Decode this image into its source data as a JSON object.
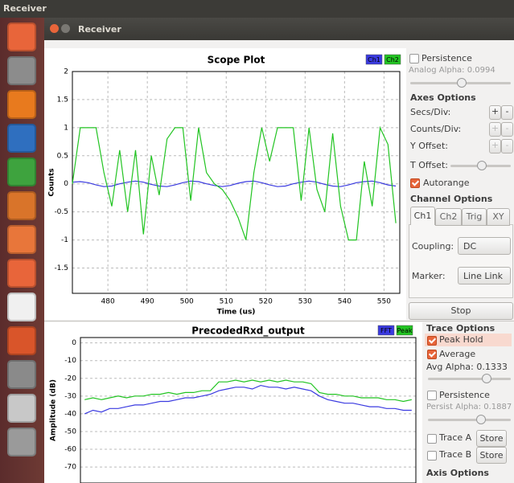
{
  "topbar": {
    "title": "Receiver"
  },
  "window": {
    "title": "Receiver"
  },
  "chart_data": [
    {
      "type": "line",
      "title": "Scope Plot",
      "xlabel": "Time (us)",
      "ylabel": "Counts",
      "x": [
        471,
        473,
        475,
        477,
        479,
        481,
        483,
        485,
        487,
        489,
        491,
        493,
        495,
        497,
        499,
        501,
        503,
        505,
        507,
        509,
        511,
        513,
        515,
        517,
        519,
        521,
        523,
        525,
        527,
        529,
        531,
        533,
        535,
        537,
        539,
        541,
        543,
        545,
        547,
        549,
        551,
        553
      ],
      "series": [
        {
          "name": "Ch1",
          "color": "#3a3ae0",
          "values": [
            0.03,
            0.04,
            0.02,
            -0.02,
            -0.05,
            -0.04,
            0,
            0.03,
            0.05,
            0.03,
            -0.01,
            -0.04,
            -0.05,
            -0.02,
            0.02,
            0.05,
            0.04,
            0,
            -0.03,
            -0.05,
            -0.03,
            0.01,
            0.04,
            0.05,
            0.02,
            -0.02,
            -0.05,
            -0.04,
            0,
            0.03,
            0.05,
            0.03,
            -0.01,
            -0.04,
            -0.05,
            -0.02,
            0.02,
            0.04,
            0.05,
            0.02,
            -0.02,
            -0.04
          ]
        },
        {
          "name": "Ch2",
          "color": "#22c422",
          "values": [
            0,
            1,
            1,
            1,
            0.2,
            -0.4,
            0.6,
            -0.5,
            0.6,
            -0.9,
            0.5,
            -0.2,
            0.8,
            1,
            1,
            -0.3,
            1,
            0.2,
            0,
            -0.1,
            -0.3,
            -0.6,
            -1,
            0.2,
            1,
            0.4,
            1,
            1,
            1,
            -0.3,
            1,
            -0.1,
            -0.5,
            0.9,
            -0.4,
            -1,
            -1,
            0.4,
            -0.4,
            1,
            0.7,
            -0.7
          ]
        }
      ],
      "xlim": [
        471,
        554
      ],
      "ylim": [
        -1.95,
        2
      ],
      "xticks": [
        480,
        490,
        500,
        510,
        520,
        530,
        540,
        550
      ],
      "yticks": [
        2,
        1.5,
        1,
        0.5,
        0,
        -0.5,
        -1,
        -1.5
      ],
      "grid": true
    },
    {
      "type": "line",
      "title": "PrecodedRxd_output",
      "ylabel": "Amplitude (dB)",
      "series": [
        {
          "name": "FFT",
          "color": "#3a3ae0",
          "values": [
            -40,
            -38,
            -39,
            -37,
            -37,
            -36,
            -35,
            -35,
            -34,
            -33,
            -33,
            -32,
            -31,
            -31,
            -30,
            -29,
            -27,
            -26,
            -25,
            -25,
            -26,
            -24,
            -25,
            -25,
            -26,
            -25,
            -26,
            -27,
            -30,
            -32,
            -33,
            -34,
            -34,
            -35,
            -36,
            -36,
            -37,
            -37,
            -38,
            -38
          ]
        },
        {
          "name": "Peak",
          "color": "#22c422",
          "values": [
            -32,
            -31,
            -32,
            -31,
            -30,
            -31,
            -30,
            -30,
            -29,
            -29,
            -28,
            -29,
            -28,
            -28,
            -27,
            -27,
            -22,
            -22,
            -21,
            -22,
            -21,
            -22,
            -21,
            -22,
            -21,
            -22,
            -22,
            -23,
            -28,
            -29,
            -29,
            -30,
            -30,
            -31,
            -31,
            -31,
            -32,
            -32,
            -33,
            -32
          ]
        }
      ],
      "ylim": [
        -79,
        3
      ],
      "yticks": [
        0,
        -10,
        -20,
        -30,
        -40,
        -50,
        -60,
        -70
      ],
      "grid": true
    }
  ],
  "scope_panel": {
    "persistence": "Persistence",
    "analog_alpha": "Analog Alpha: 0.0994",
    "axes_options": "Axes Options",
    "secs_div": "Secs/Div:",
    "counts_div": "Counts/Div:",
    "y_offset": "Y Offset:",
    "t_offset": "T Offset:",
    "plus": "+",
    "minus": "-",
    "autorange": "Autorange",
    "channel_options": "Channel Options",
    "tabs": [
      "Ch1",
      "Ch2",
      "Trig",
      "XY"
    ],
    "coupling": "Coupling:",
    "coupling_value": "DC",
    "marker": "Marker:",
    "marker_value": "Line Link",
    "stop": "Stop"
  },
  "fft_panel": {
    "trace_options": "Trace Options",
    "peak_hold": "Peak Hold",
    "average": "Average",
    "avg_alpha": "Avg Alpha: 0.1333",
    "persistence": "Persistence",
    "persist_alpha": "Persist Alpha: 0.1887",
    "trace_a": "Trace A",
    "trace_b": "Trace B",
    "store": "Store",
    "axis_options": "Axis Options"
  }
}
